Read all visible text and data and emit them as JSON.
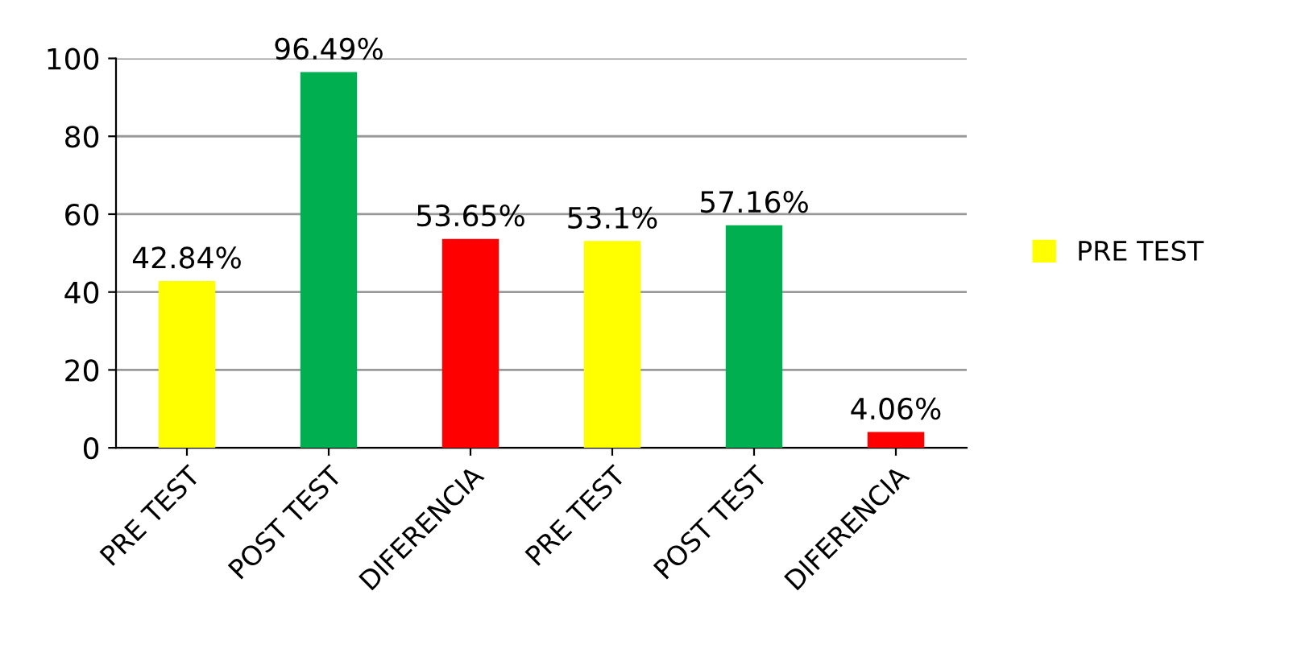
{
  "chart_data": {
    "type": "bar",
    "categories": [
      "PRE TEST",
      "POST TEST",
      "DIFERENCIA",
      "PRE TEST",
      "POST TEST",
      "DIFERENCIA"
    ],
    "series": [
      {
        "name": "PRE TEST",
        "color": "#ffff00",
        "colors": [
          "#ffff00",
          "#00b050",
          "#ff0000",
          "#ffff00",
          "#00b050",
          "#ff0000"
        ],
        "values": [
          42.84,
          96.49,
          53.65,
          53.1,
          57.16,
          4.06
        ],
        "value_labels": [
          "42.84%",
          "96.49%",
          "53.65%",
          "53.1%",
          "57.16%",
          "4.06%"
        ]
      }
    ],
    "ylim": [
      0,
      100
    ],
    "yticks": [
      0,
      20,
      40,
      60,
      80,
      100
    ],
    "grid": "y",
    "legend": "right"
  }
}
